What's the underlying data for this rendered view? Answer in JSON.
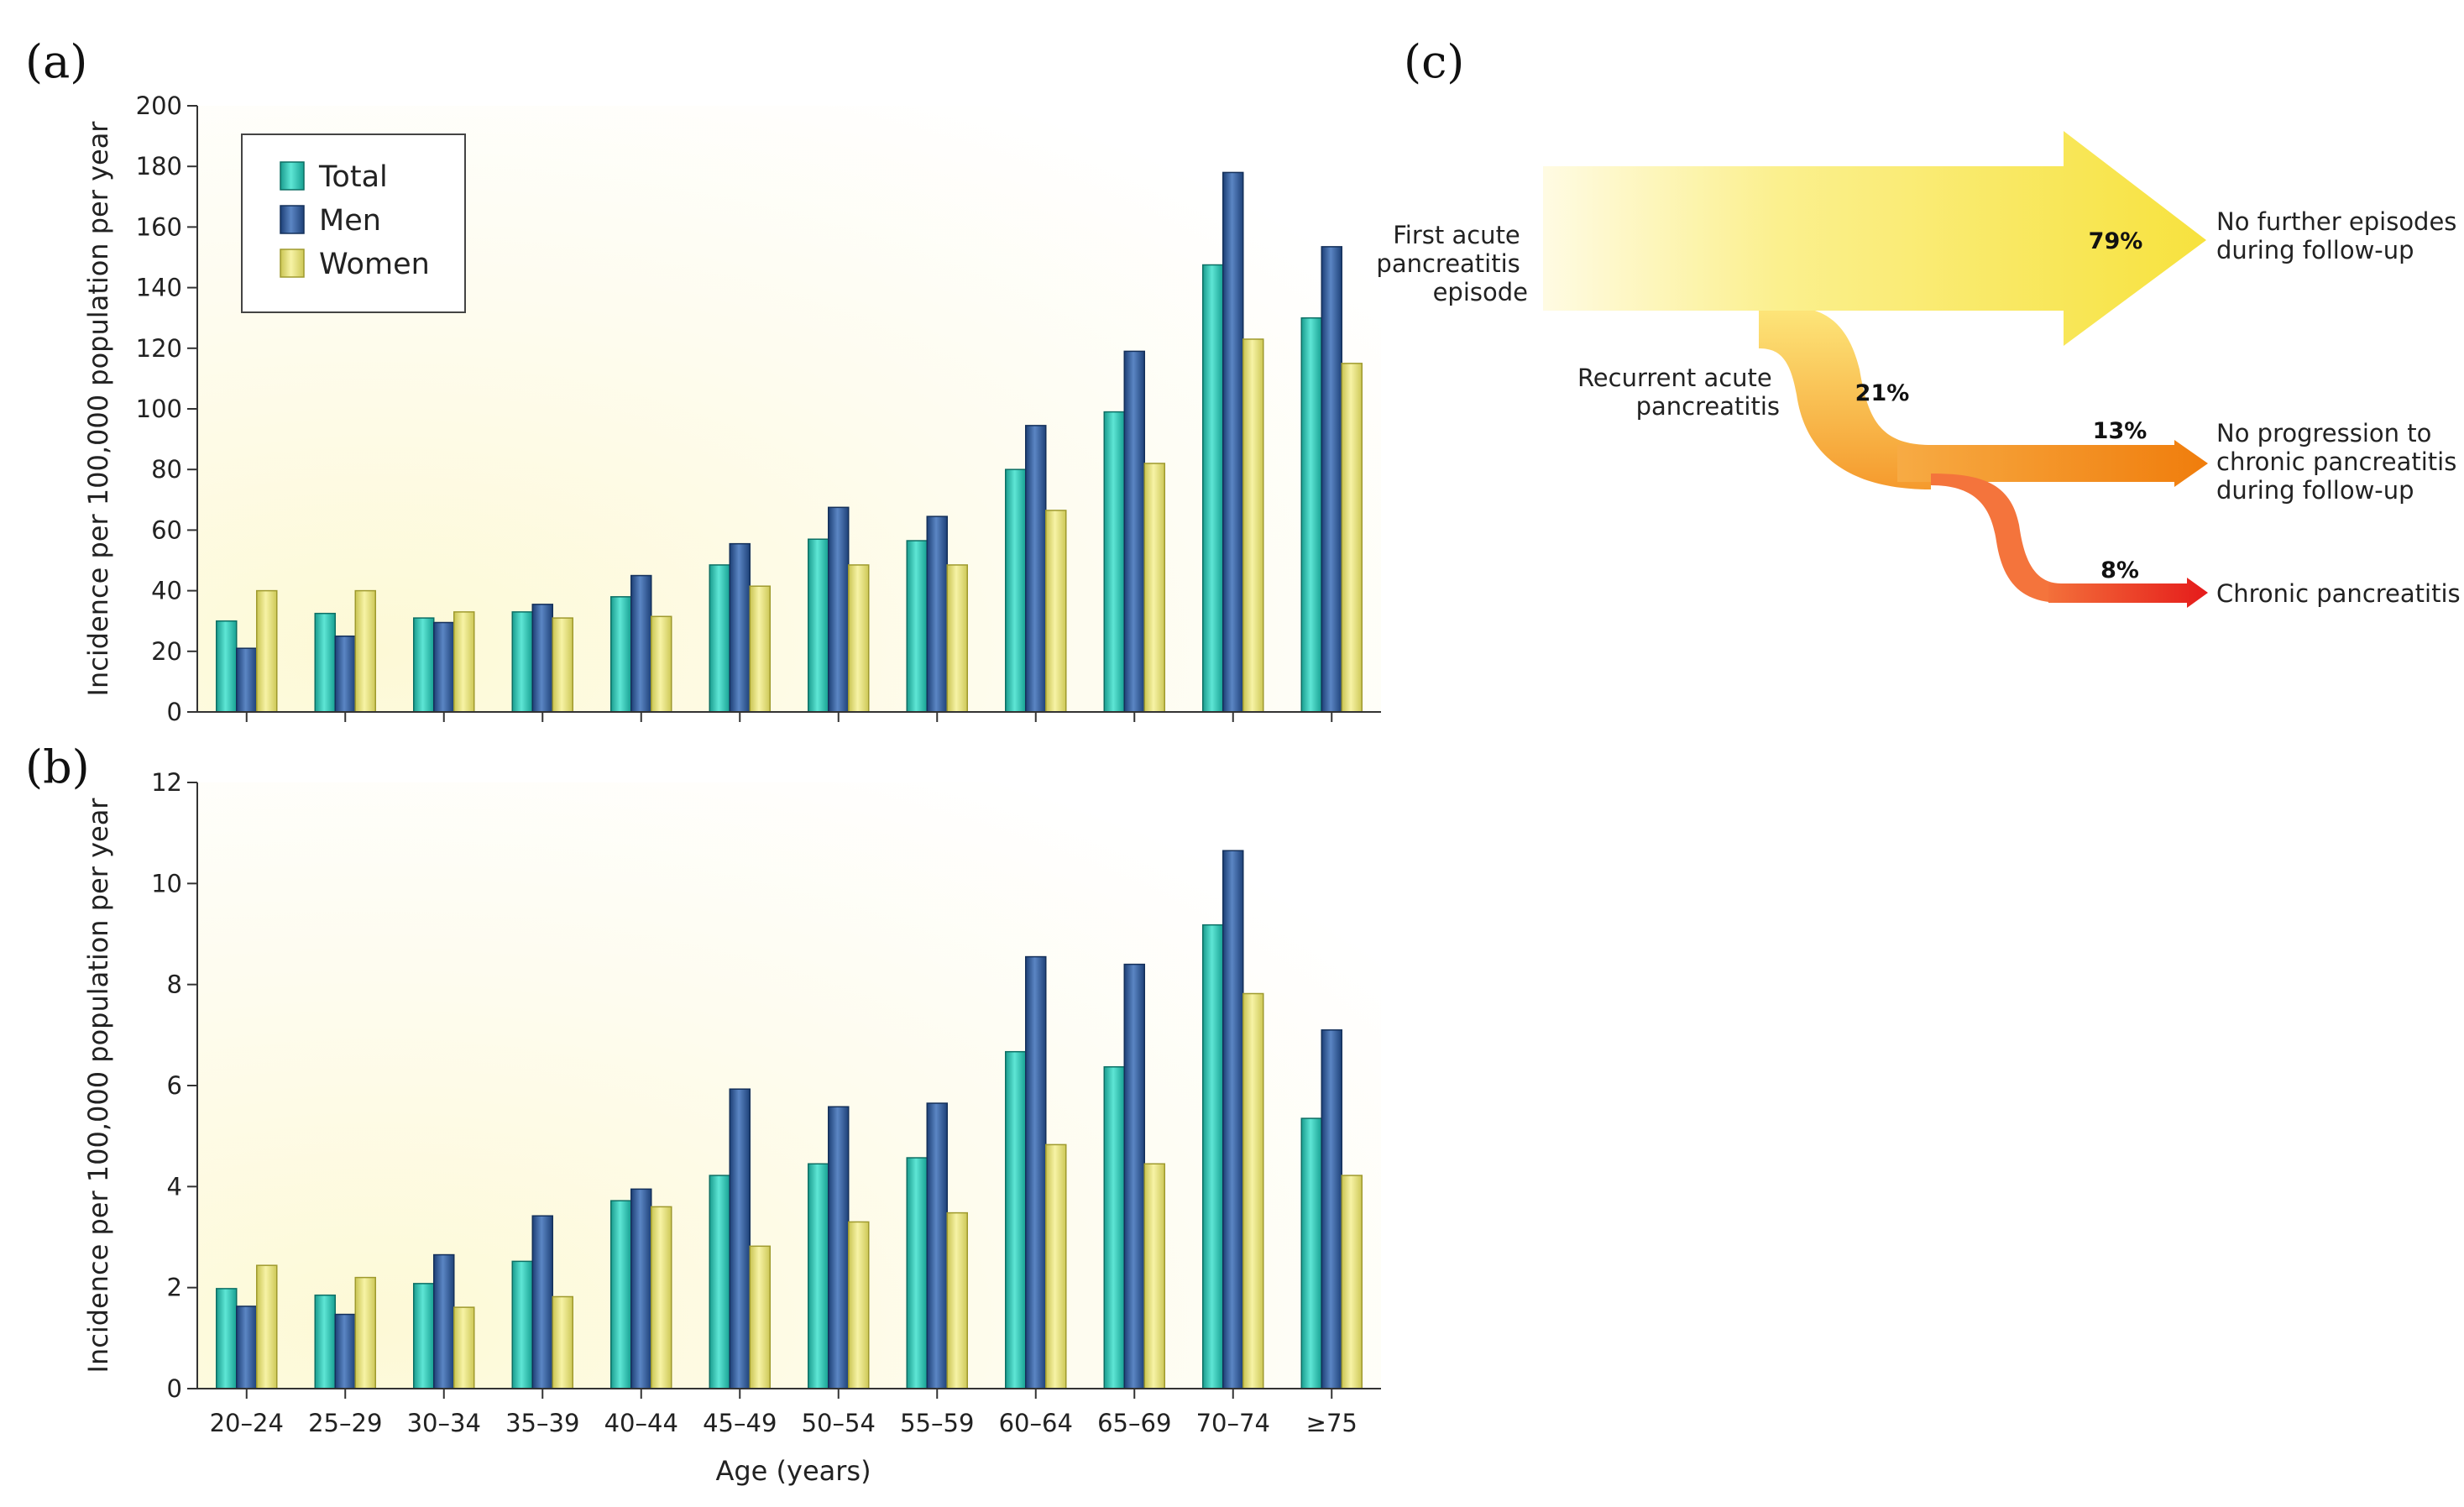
{
  "panels": {
    "a": "(a)",
    "b": "(b)",
    "c": "(c)"
  },
  "colors": {
    "Total": "#2ac7b6",
    "Men": "#2f5b9a",
    "Women": "#e7e37a"
  },
  "chart_data": [
    {
      "type": "bar",
      "panel": "a",
      "categories": [
        "20–24",
        "25–29",
        "30–34",
        "35–39",
        "40–44",
        "45–49",
        "50–54",
        "55–59",
        "60–64",
        "65–69",
        "70–74",
        "≥75"
      ],
      "series": [
        {
          "name": "Total",
          "values": [
            30,
            32.5,
            31,
            33,
            38,
            48.5,
            57,
            56.5,
            80,
            99,
            147.5,
            130
          ]
        },
        {
          "name": "Men",
          "values": [
            21,
            25,
            29.5,
            35.5,
            45,
            55.5,
            67.5,
            64.5,
            94.5,
            119,
            178,
            153.5
          ]
        },
        {
          "name": "Women",
          "values": [
            40,
            40,
            33,
            31,
            31.5,
            41.5,
            48.5,
            48.5,
            66.5,
            82,
            123,
            115
          ]
        }
      ],
      "xlabel": "",
      "ylabel": "Incidence per 100,000 population per year",
      "ylim": [
        0,
        200
      ],
      "yticks": [
        0,
        20,
        40,
        60,
        80,
        100,
        120,
        140,
        160,
        180,
        200
      ],
      "legend": {
        "position": "top-left",
        "entries": [
          "Total",
          "Men",
          "Women"
        ]
      }
    },
    {
      "type": "bar",
      "panel": "b",
      "categories": [
        "20–24",
        "25–29",
        "30–34",
        "35–39",
        "40–44",
        "45–49",
        "50–54",
        "55–59",
        "60–64",
        "65–69",
        "70–74",
        "≥75"
      ],
      "series": [
        {
          "name": "Total",
          "values": [
            1.98,
            1.85,
            2.08,
            2.52,
            3.72,
            4.22,
            4.45,
            4.57,
            6.67,
            6.37,
            9.18,
            5.35
          ]
        },
        {
          "name": "Men",
          "values": [
            1.63,
            1.47,
            2.65,
            3.42,
            3.95,
            5.93,
            5.58,
            5.65,
            8.55,
            8.4,
            10.65,
            7.1
          ]
        },
        {
          "name": "Women",
          "values": [
            2.44,
            2.2,
            1.61,
            1.82,
            3.6,
            2.82,
            3.3,
            3.48,
            4.83,
            4.45,
            7.82,
            4.22
          ]
        }
      ],
      "xlabel": "Age (years)",
      "ylabel": "Incidence per 100,000 population per year",
      "ylim": [
        0,
        12
      ],
      "yticks": [
        0,
        2,
        4,
        6,
        8,
        10,
        12
      ]
    }
  ],
  "flow": {
    "start_label": [
      "First acute",
      "pancreatitis",
      "episode"
    ],
    "recurrent_label": [
      "Recurrent acute",
      "pancreatitis"
    ],
    "branches": [
      {
        "percent": "79%",
        "label": [
          "No further episodes",
          "during follow-up"
        ],
        "color": "#f6e33f"
      },
      {
        "percent": "21%",
        "label": [],
        "color": "#f7a93a"
      },
      {
        "percent": "13%",
        "label": [
          "No progression to",
          "chronic pancreatitis",
          "during follow-up"
        ],
        "color": "#f2820f"
      },
      {
        "percent": "8%",
        "label": [
          "Chronic pancreatitis"
        ],
        "color": "#e8211e"
      }
    ]
  }
}
